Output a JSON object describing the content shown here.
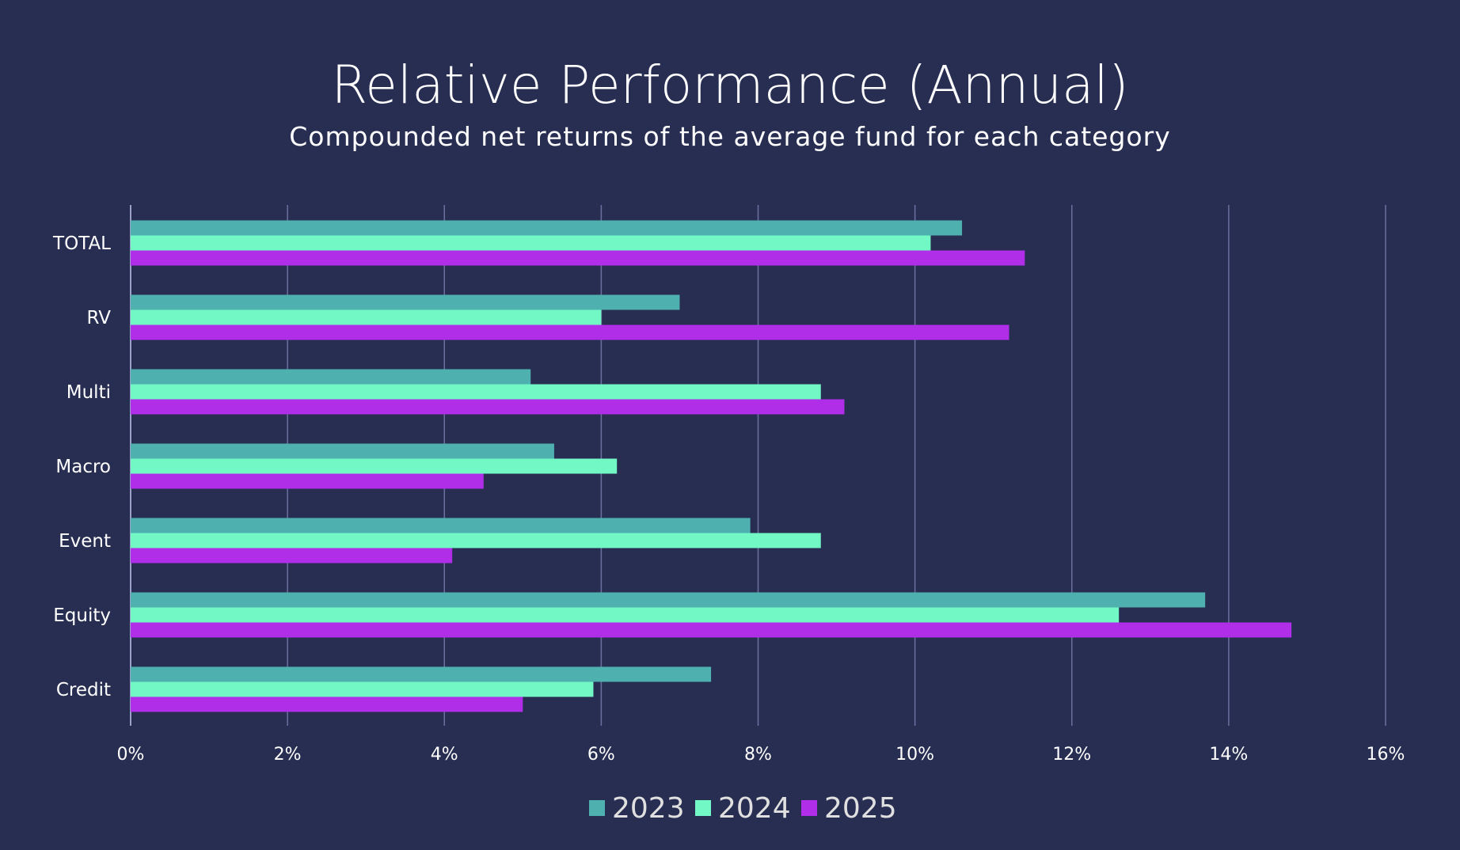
{
  "chart_data": {
    "type": "bar",
    "orientation": "horizontal",
    "title": "Relative Performance (Annual)",
    "subtitle": "Compounded net returns of the average fund for each category",
    "xlabel": "",
    "ylabel": "",
    "categories": [
      "TOTAL",
      "RV",
      "Multi",
      "Macro",
      "Event",
      "Equity",
      "Credit"
    ],
    "series": [
      {
        "name": "2023",
        "color": "#4fb0b0",
        "values": [
          10.6,
          7.0,
          5.1,
          5.4,
          7.9,
          13.7,
          7.4
        ]
      },
      {
        "name": "2024",
        "color": "#72f8c4",
        "values": [
          10.2,
          6.0,
          8.8,
          6.2,
          8.8,
          12.6,
          5.9
        ]
      },
      {
        "name": "2025",
        "color": "#b12ee9",
        "values": [
          11.4,
          11.2,
          9.1,
          4.5,
          4.1,
          14.8,
          5.0
        ]
      }
    ],
    "xlim": [
      0,
      16
    ],
    "xticks": [
      "0%",
      "2%",
      "4%",
      "6%",
      "8%",
      "10%",
      "12%",
      "14%",
      "16%"
    ],
    "grid": "vertical",
    "legend": "bottom",
    "background": "#282e52"
  }
}
